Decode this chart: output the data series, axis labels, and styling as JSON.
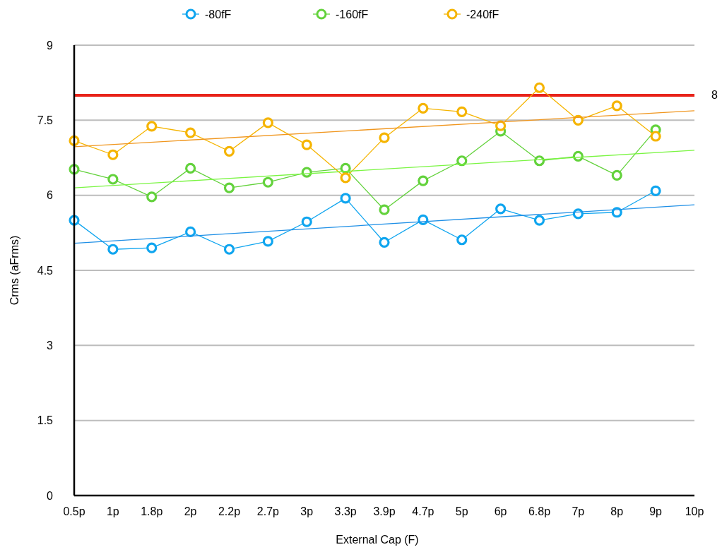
{
  "chart_data": {
    "type": "line",
    "xlabel": "External Cap (F)",
    "ylabel": "Crms (aFrms)",
    "categories": [
      "0.5p",
      "1p",
      "1.8p",
      "2p",
      "2.2p",
      "2.7p",
      "3p",
      "3.3p",
      "3.9p",
      "4.7p",
      "5p",
      "6p",
      "6.8p",
      "7p",
      "8p",
      "9p",
      "10p"
    ],
    "series": [
      {
        "name": "-80fF",
        "color": "#0fa5ef",
        "marker": "circle",
        "values": [
          5.5,
          4.92,
          4.95,
          5.27,
          4.92,
          5.08,
          5.47,
          5.94,
          5.06,
          5.51,
          5.11,
          5.73,
          5.5,
          5.63,
          5.66,
          6.09,
          null
        ]
      },
      {
        "name": "-160fF",
        "color": "#63d23c",
        "marker": "circle",
        "values": [
          6.52,
          6.32,
          5.97,
          6.54,
          6.15,
          6.26,
          6.46,
          6.54,
          5.71,
          6.29,
          6.69,
          7.28,
          6.69,
          6.78,
          6.4,
          7.31,
          null
        ]
      },
      {
        "name": "-240fF",
        "color": "#f5b400",
        "marker": "circle",
        "values": [
          7.09,
          6.81,
          7.38,
          7.25,
          6.88,
          7.45,
          7.01,
          6.35,
          7.15,
          7.74,
          7.67,
          7.39,
          8.15,
          7.5,
          7.79,
          7.18,
          null
        ]
      },
      {
        "color": "#1e8fe6",
        "marker": "none",
        "values": [
          5.04,
          null,
          null,
          null,
          null,
          null,
          null,
          null,
          null,
          null,
          null,
          null,
          null,
          null,
          null,
          null,
          5.81
        ]
      },
      {
        "color": "#7af542",
        "marker": "none",
        "values": [
          6.15,
          null,
          null,
          null,
          null,
          null,
          null,
          null,
          null,
          null,
          null,
          null,
          null,
          null,
          null,
          null,
          6.9
        ]
      },
      {
        "color": "#f0961e",
        "marker": "none",
        "values": [
          6.97,
          null,
          null,
          null,
          null,
          null,
          null,
          null,
          null,
          null,
          null,
          null,
          null,
          null,
          null,
          null,
          7.69
        ]
      }
    ],
    "ylim": [
      0,
      9
    ],
    "yticks": [
      0,
      1.5,
      3,
      4.5,
      6,
      7.5,
      9
    ],
    "grid": "y",
    "legend": "top",
    "ref_lines": [
      {
        "axis": "y",
        "value": 8,
        "label": "8",
        "color": "#e8231a"
      }
    ]
  }
}
